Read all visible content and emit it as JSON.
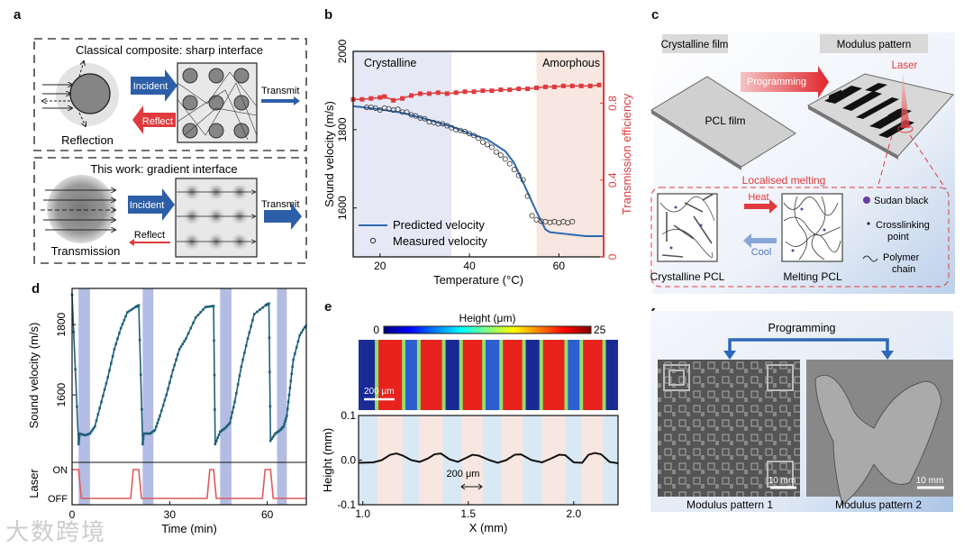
{
  "panel_labels": {
    "a": "a",
    "b": "b",
    "c": "c",
    "d": "d",
    "e": "e",
    "f": "f"
  },
  "panel_a": {
    "top_title": "Classical composite: sharp interface",
    "bottom_title": "This work: gradient interface",
    "incident": "Incident",
    "reflect": "Reflect",
    "transmit": "Transmit",
    "reflection": "Reflection",
    "transmission": "Transmission"
  },
  "panel_c": {
    "crystalline_film": "Crystalline film",
    "modulus_pattern": "Modulus pattern",
    "programming": "Programming",
    "laser": "Laser",
    "pcl_film": "PCL film",
    "localised_melting": "Localised melting",
    "heat": "Heat",
    "cool": "Cool",
    "crystalline_pcl": "Crystalline PCL",
    "melting_pcl": "Melting PCL",
    "legend_sudan": "Sudan black",
    "legend_crosslink_1": "Crosslinking",
    "legend_crosslink_2": "point",
    "legend_polymer_1": "Polymer",
    "legend_polymer_2": "chain"
  },
  "panel_f": {
    "programming": "Programming",
    "caption_1": "Modulus pattern 1",
    "caption_2": "Modulus pattern 2",
    "scale_1": "10 mm",
    "scale_2": "10 mm"
  },
  "watermark": "大数跨境",
  "colors": {
    "blue": "#2d5fa8",
    "red": "#e03a3e",
    "teal": "#1f5f7a",
    "laser": "#e05a5a"
  },
  "chart_data": [
    {
      "id": "b",
      "type": "line",
      "xlabel": "Temperature (°C)",
      "ylabel": "Sound velocity (m/s)",
      "y2label": "Transmission efficiency",
      "xlim": [
        14,
        70
      ],
      "ylim": [
        1475,
        2000
      ],
      "y2lim": [
        0,
        1.07
      ],
      "xticks": [
        20,
        40,
        60
      ],
      "yticks": [
        1600,
        1800,
        2000
      ],
      "y2ticks": [
        0,
        0.4,
        0.8
      ],
      "regions": [
        {
          "label": "Crystalline",
          "from": 14,
          "to": 36,
          "color": "#e6e9f5"
        },
        {
          "label": "Amorphous",
          "from": 55,
          "to": 70,
          "color": "#f8e6e0"
        }
      ],
      "legend": [
        "Predicted velocity",
        "Measured velocity"
      ],
      "legend_position": "bottom-left",
      "series": [
        {
          "name": "Predicted velocity",
          "style": "line",
          "color": "#2d68b0",
          "x": [
            14,
            20,
            25,
            30,
            36,
            40,
            44,
            48,
            50,
            53,
            55,
            57,
            58,
            62,
            66,
            70
          ],
          "y": [
            1860,
            1852,
            1843,
            1828,
            1808,
            1790,
            1775,
            1745,
            1715,
            1640,
            1590,
            1545,
            1538,
            1533,
            1528,
            1528
          ]
        },
        {
          "name": "Measured velocity",
          "style": "open-circle",
          "color": "#333",
          "x": [
            17,
            18,
            19,
            20,
            21,
            22,
            23,
            24,
            25,
            26,
            27,
            28,
            29,
            30,
            31,
            32,
            33,
            34,
            35,
            36,
            37,
            38,
            39,
            40,
            41,
            42,
            43,
            44,
            45,
            46,
            47,
            48,
            49,
            50,
            51,
            52,
            53,
            54,
            55,
            56,
            57,
            58,
            59,
            60,
            61,
            62,
            63
          ],
          "y": [
            1857,
            1857,
            1855,
            1850,
            1855,
            1853,
            1850,
            1852,
            1845,
            1845,
            1838,
            1835,
            1830,
            1828,
            1820,
            1818,
            1815,
            1815,
            1810,
            1805,
            1800,
            1798,
            1795,
            1790,
            1785,
            1778,
            1768,
            1762,
            1755,
            1743,
            1735,
            1725,
            1713,
            1698,
            1683,
            1672,
            1630,
            1580,
            1570,
            1566,
            1565,
            1563,
            1565,
            1562,
            1565,
            1562,
            1565
          ]
        },
        {
          "name": "Transmission efficiency",
          "axis": "y2",
          "style": "line-square",
          "color": "#e03a3e",
          "x": [
            14,
            16,
            18,
            20,
            21,
            23,
            25,
            27,
            29,
            31,
            33,
            35,
            37,
            39,
            41,
            43,
            45,
            47,
            49,
            51,
            53,
            55,
            57,
            59,
            61,
            63,
            65,
            67,
            69
          ],
          "y": [
            0.82,
            0.82,
            0.825,
            0.83,
            0.835,
            0.815,
            0.825,
            0.84,
            0.85,
            0.85,
            0.855,
            0.85,
            0.855,
            0.86,
            0.86,
            0.865,
            0.865,
            0.87,
            0.87,
            0.875,
            0.875,
            0.88,
            0.885,
            0.885,
            0.89,
            0.89,
            0.89,
            0.89,
            0.895
          ]
        }
      ]
    },
    {
      "id": "d",
      "type": "line",
      "xlabel": "Time (min)",
      "ylabel": "Sound velocity (m/s)",
      "ylabel2": "Laser",
      "xlim": [
        0,
        72
      ],
      "ylim": [
        1408,
        1903
      ],
      "xticks": [
        0,
        30,
        60
      ],
      "yticks": [
        1600,
        1800
      ],
      "laser_ticks": [
        "ON",
        "OFF"
      ],
      "cooling_bands": [
        [
          2,
          5.5
        ],
        [
          21.7,
          25
        ],
        [
          45.5,
          49
        ],
        [
          63,
          66
        ]
      ],
      "series": [
        {
          "name": "Sound velocity",
          "color": "#1f5f7a",
          "x": [
            0,
            2,
            2.3,
            4,
            5.5,
            7,
            9,
            11,
            13,
            15,
            17,
            19.5,
            20.5,
            21.7,
            22,
            24,
            25.5,
            27,
            29,
            31,
            33,
            35,
            38,
            41,
            43.5,
            44,
            45.5,
            47,
            48.5,
            50,
            52,
            54,
            56,
            59.5,
            60.5,
            61,
            62.5,
            64,
            65,
            66,
            67,
            68,
            70,
            72
          ],
          "y": [
            1885,
            1460,
            1490,
            1485,
            1490,
            1510,
            1580,
            1650,
            1730,
            1790,
            1835,
            1850,
            1855,
            1460,
            1490,
            1490,
            1500,
            1540,
            1600,
            1670,
            1730,
            1760,
            1820,
            1850,
            1853,
            1460,
            1495,
            1505,
            1520,
            1580,
            1680,
            1760,
            1830,
            1855,
            1860,
            1470,
            1490,
            1500,
            1510,
            1540,
            1620,
            1700,
            1770,
            1800
          ]
        },
        {
          "name": "Laser",
          "color": "#e05a5a",
          "on_intervals": [
            [
              0,
              2
            ],
            [
              18,
              20.5
            ],
            [
              41.5,
              43.5
            ],
            [
              58.5,
              61
            ]
          ]
        }
      ]
    },
    {
      "id": "e",
      "type": "line",
      "colorbar_title": "Height (μm)",
      "colorbar_range": [
        0,
        25
      ],
      "colorbar_min_label": "0",
      "colorbar_max_label": "25",
      "image_scale_bar": "200 μm",
      "xlabel": "X (mm)",
      "ylabel": "Height (mm)",
      "xlim": [
        0.98,
        2.21
      ],
      "ylim": [
        -0.1,
        0.1
      ],
      "xticks": [
        1.0,
        1.5,
        2.0
      ],
      "xtick_labels": [
        "1.0",
        "1.5",
        "2.0"
      ],
      "yticks": [
        -0.1,
        0.0,
        0.1
      ],
      "ytick_labels": [
        "-0.1",
        "0.0",
        "0.1"
      ],
      "annotation": "200 μm",
      "stripe_boundaries": [
        0.98,
        1.07,
        1.19,
        1.27,
        1.38,
        1.47,
        1.57,
        1.66,
        1.76,
        1.85,
        1.96,
        2.04,
        2.14,
        2.21
      ],
      "series": [
        {
          "name": "Height profile",
          "color": "#111",
          "x": [
            0.98,
            1.05,
            1.09,
            1.13,
            1.16,
            1.19,
            1.23,
            1.27,
            1.31,
            1.34,
            1.37,
            1.41,
            1.45,
            1.49,
            1.52,
            1.55,
            1.6,
            1.64,
            1.68,
            1.72,
            1.75,
            1.8,
            1.85,
            1.89,
            1.93,
            1.96,
            2.0,
            2.04,
            2.07,
            2.1,
            2.13,
            2.17,
            2.21
          ],
          "y": [
            -0.006,
            -0.005,
            0.0,
            0.012,
            0.015,
            0.01,
            0.0,
            -0.004,
            0.004,
            0.013,
            0.015,
            0.002,
            -0.004,
            0.005,
            0.012,
            0.01,
            0.0,
            -0.006,
            0.0,
            0.012,
            0.013,
            0.0,
            -0.005,
            0.003,
            0.012,
            0.011,
            -0.005,
            -0.006,
            0.012,
            0.016,
            0.013,
            -0.004,
            -0.007
          ]
        }
      ]
    }
  ]
}
